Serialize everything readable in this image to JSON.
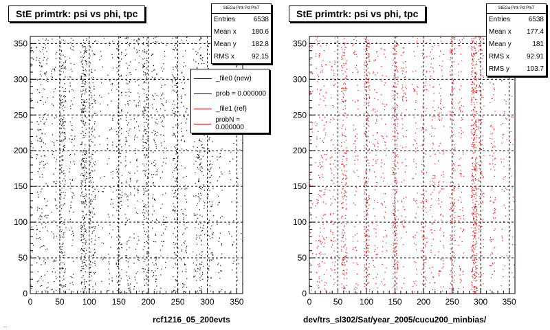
{
  "footer_text": "...",
  "chart_data": [
    {
      "type": "scatter",
      "title": "StE primtrk: psi vs phi, tpc",
      "xlabel": "rcf1216_05_200evts",
      "ylabel": "",
      "xlim": [
        0,
        360
      ],
      "ylim": [
        0,
        360
      ],
      "x_ticks": [
        0,
        50,
        100,
        150,
        200,
        250,
        300,
        350
      ],
      "y_ticks": [
        0,
        50,
        100,
        150,
        200,
        250,
        300,
        350
      ],
      "grid": true,
      "marker_color": "#000000",
      "x_density_profile": [
        {
          "x": 0,
          "w": 1
        },
        {
          "x": 15,
          "w": 3
        },
        {
          "x": 25,
          "w": 2
        },
        {
          "x": 40,
          "w": 2
        },
        {
          "x": 55,
          "w": 6
        },
        {
          "x": 70,
          "w": 2
        },
        {
          "x": 90,
          "w": 9
        },
        {
          "x": 105,
          "w": 4
        },
        {
          "x": 120,
          "w": 1
        },
        {
          "x": 135,
          "w": 2
        },
        {
          "x": 150,
          "w": 4
        },
        {
          "x": 165,
          "w": 3
        },
        {
          "x": 180,
          "w": 2
        },
        {
          "x": 195,
          "w": 6
        },
        {
          "x": 210,
          "w": 3
        },
        {
          "x": 225,
          "w": 2
        },
        {
          "x": 245,
          "w": 4
        },
        {
          "x": 260,
          "w": 3
        },
        {
          "x": 280,
          "w": 3
        },
        {
          "x": 290,
          "w": 4
        },
        {
          "x": 305,
          "w": 3
        },
        {
          "x": 320,
          "w": 2
        },
        {
          "x": 340,
          "w": 1
        },
        {
          "x": 355,
          "w": 0.5
        }
      ],
      "stats": {
        "header": "StEGa Prtk Pd PhiT",
        "rows": [
          {
            "label": "Entries",
            "value": "6538"
          },
          {
            "label": "Mean x",
            "value": "180.6"
          },
          {
            "label": "Mean y",
            "value": "182.8"
          },
          {
            "label": "RMS x",
            "value": "92.15"
          }
        ]
      },
      "legend": [
        {
          "label": "_file0 (new)",
          "color": "#000000"
        },
        {
          "label": "prob = 0.000000",
          "color": "#000000"
        },
        {
          "label": "_file1 (ref)",
          "color": "#cc0000"
        },
        {
          "label": "probN = 0.000000",
          "color": "#cc0000"
        }
      ]
    },
    {
      "type": "scatter",
      "title": "StE primtrk: psi vs phi, tpc",
      "xlabel": "dev/trs_sl302/Sat/year_2005/cucu200_minbias/",
      "ylabel": "",
      "xlim": [
        0,
        360
      ],
      "ylim": [
        0,
        360
      ],
      "x_ticks": [
        0,
        50,
        100,
        150,
        200,
        250,
        300,
        350
      ],
      "y_ticks": [
        0,
        50,
        100,
        150,
        200,
        250,
        300,
        350
      ],
      "grid": true,
      "marker_color": "#ff0000",
      "x_density_profile": [
        {
          "x": 0,
          "w": 1
        },
        {
          "x": 15,
          "w": 2
        },
        {
          "x": 25,
          "w": 2
        },
        {
          "x": 40,
          "w": 2
        },
        {
          "x": 60,
          "w": 5
        },
        {
          "x": 80,
          "w": 2
        },
        {
          "x": 100,
          "w": 5
        },
        {
          "x": 115,
          "w": 2
        },
        {
          "x": 130,
          "w": 2
        },
        {
          "x": 150,
          "w": 5
        },
        {
          "x": 165,
          "w": 2
        },
        {
          "x": 185,
          "w": 2
        },
        {
          "x": 200,
          "w": 3
        },
        {
          "x": 215,
          "w": 2
        },
        {
          "x": 230,
          "w": 2
        },
        {
          "x": 250,
          "w": 4
        },
        {
          "x": 265,
          "w": 2
        },
        {
          "x": 288,
          "w": 10
        },
        {
          "x": 300,
          "w": 3
        },
        {
          "x": 320,
          "w": 2
        },
        {
          "x": 340,
          "w": 1
        },
        {
          "x": 355,
          "w": 0.5
        }
      ],
      "stats": {
        "header": "StEGa Prtk Pd PhiT",
        "rows": [
          {
            "label": "Entries",
            "value": "6538"
          },
          {
            "label": "Mean x",
            "value": "177.4"
          },
          {
            "label": "Mean y",
            "value": "181"
          },
          {
            "label": "RMS x",
            "value": "92.91"
          },
          {
            "label": "RMS y",
            "value": "103.7"
          }
        ]
      }
    }
  ]
}
